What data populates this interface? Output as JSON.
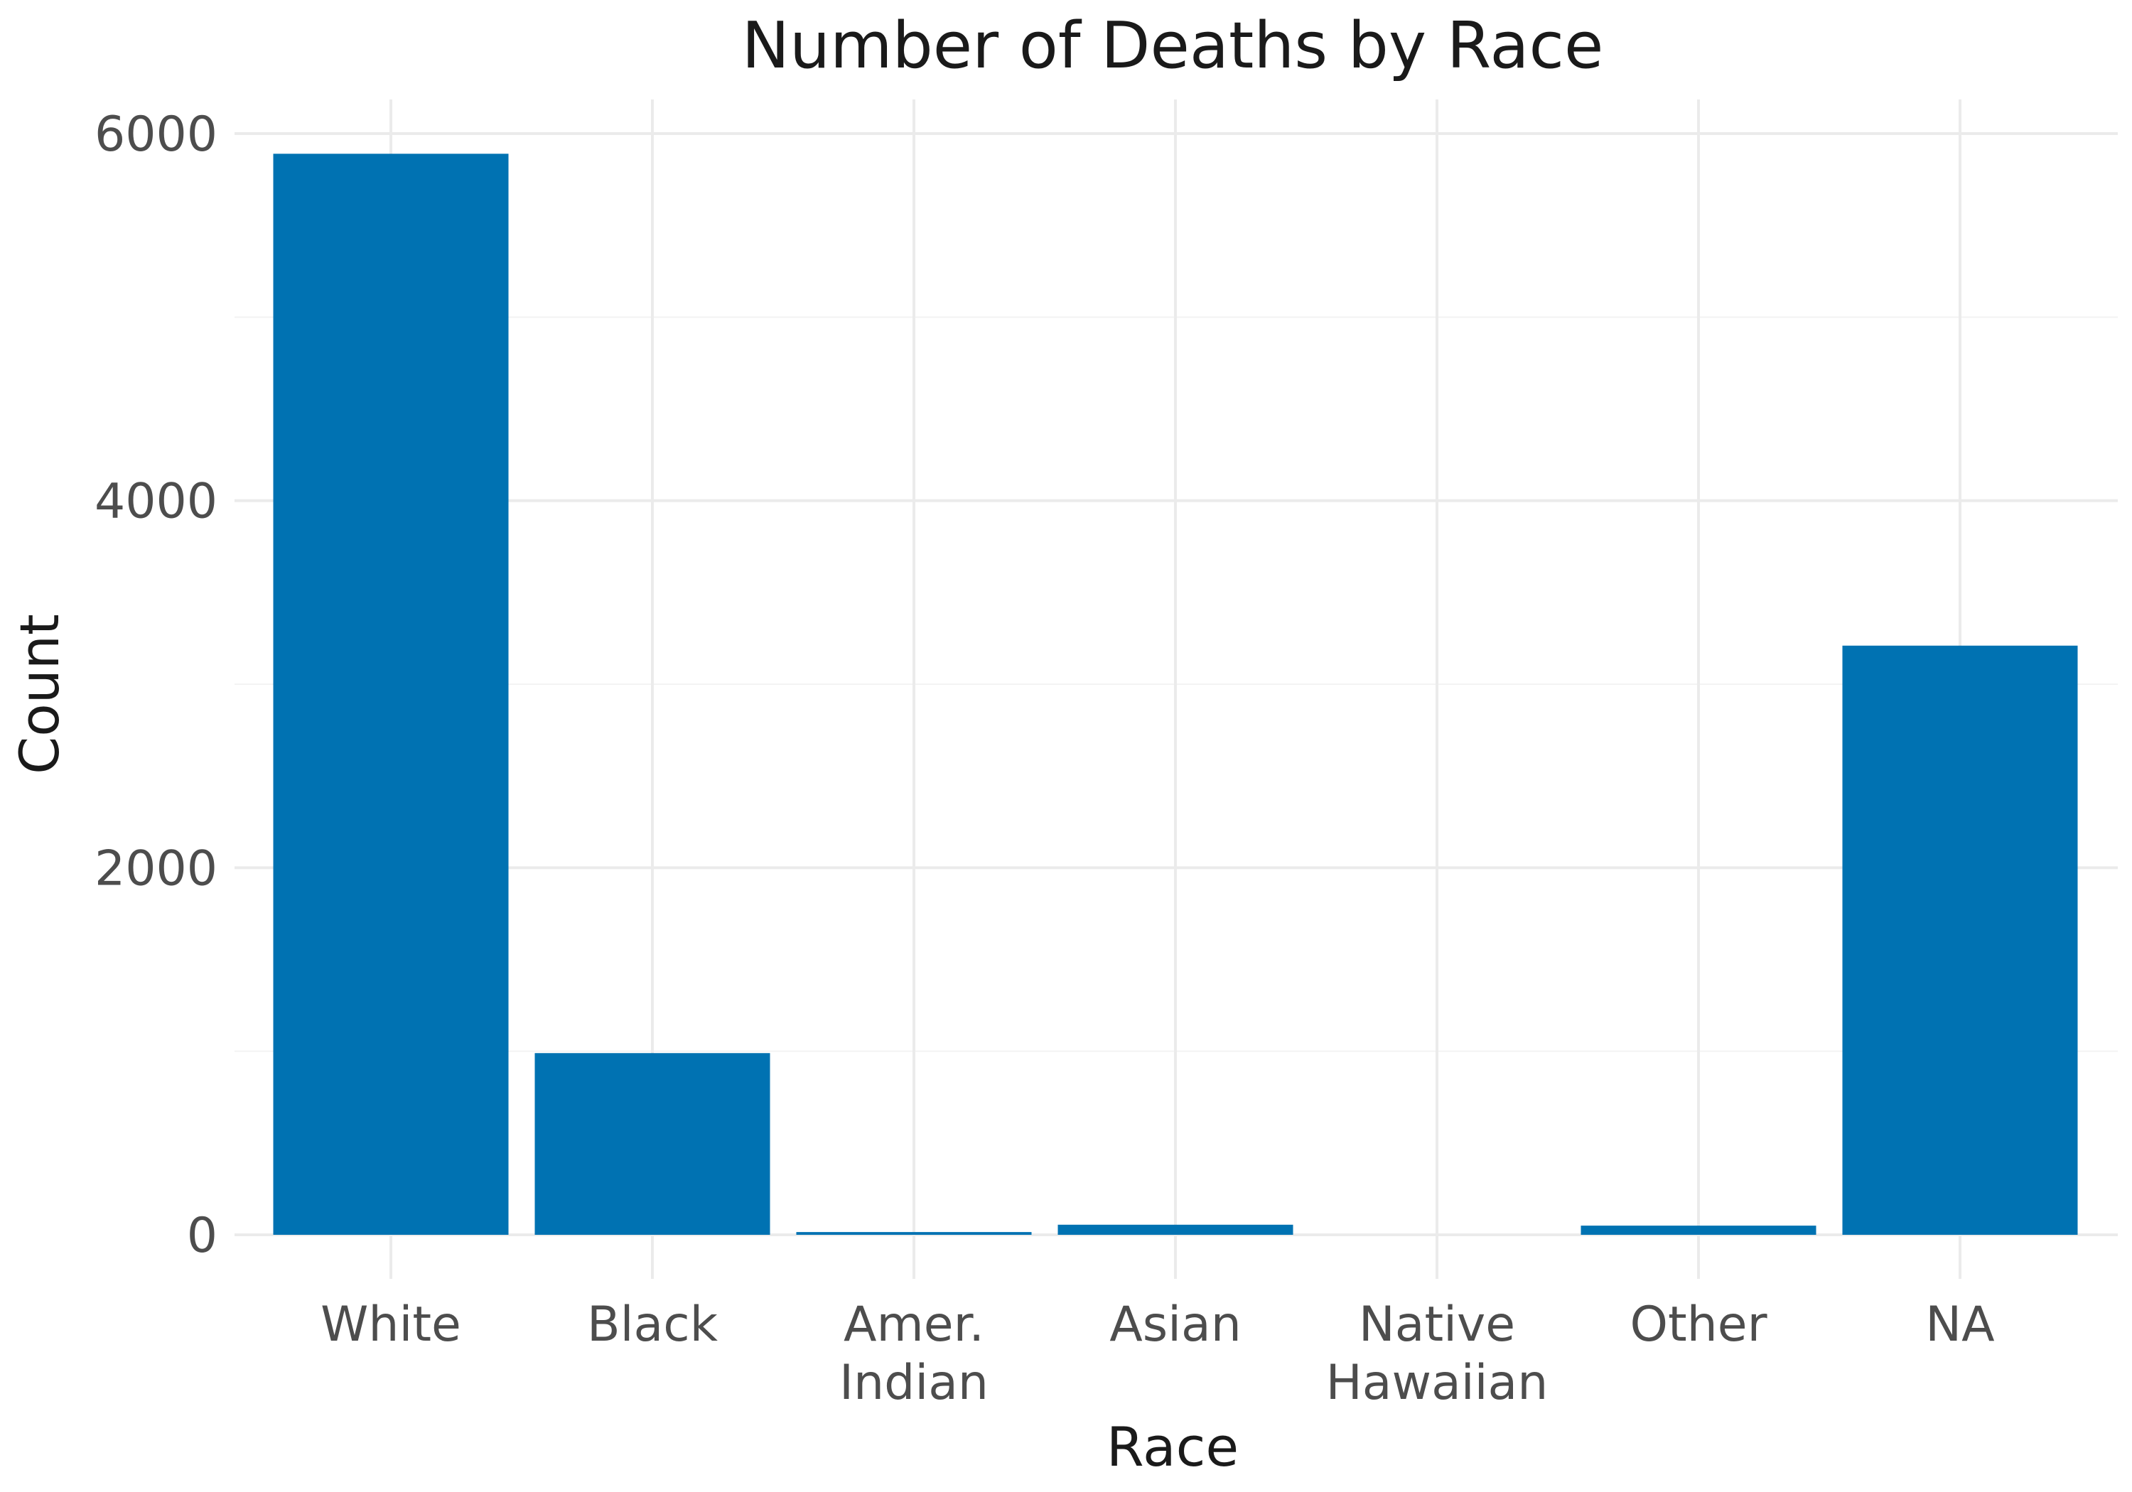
{
  "chart_data": {
    "type": "bar",
    "title": "Number of Deaths by Race",
    "xlabel": "Race",
    "ylabel": "Count",
    "categories": [
      [
        "White"
      ],
      [
        "Black"
      ],
      [
        "Amer.",
        "Indian"
      ],
      [
        "Asian"
      ],
      [
        "Native",
        "Hawaiian"
      ],
      [
        "Other"
      ],
      [
        "NA"
      ]
    ],
    "values": [
      5890,
      990,
      15,
      55,
      0,
      50,
      3210
    ],
    "ylim": [
      0,
      6200
    ],
    "yticks": [
      0,
      2000,
      4000,
      6000
    ],
    "ytick_labels": [
      "0",
      "2000",
      "4000",
      "6000"
    ],
    "grid": true,
    "legend": "none",
    "bar_color": "#0072b2"
  }
}
